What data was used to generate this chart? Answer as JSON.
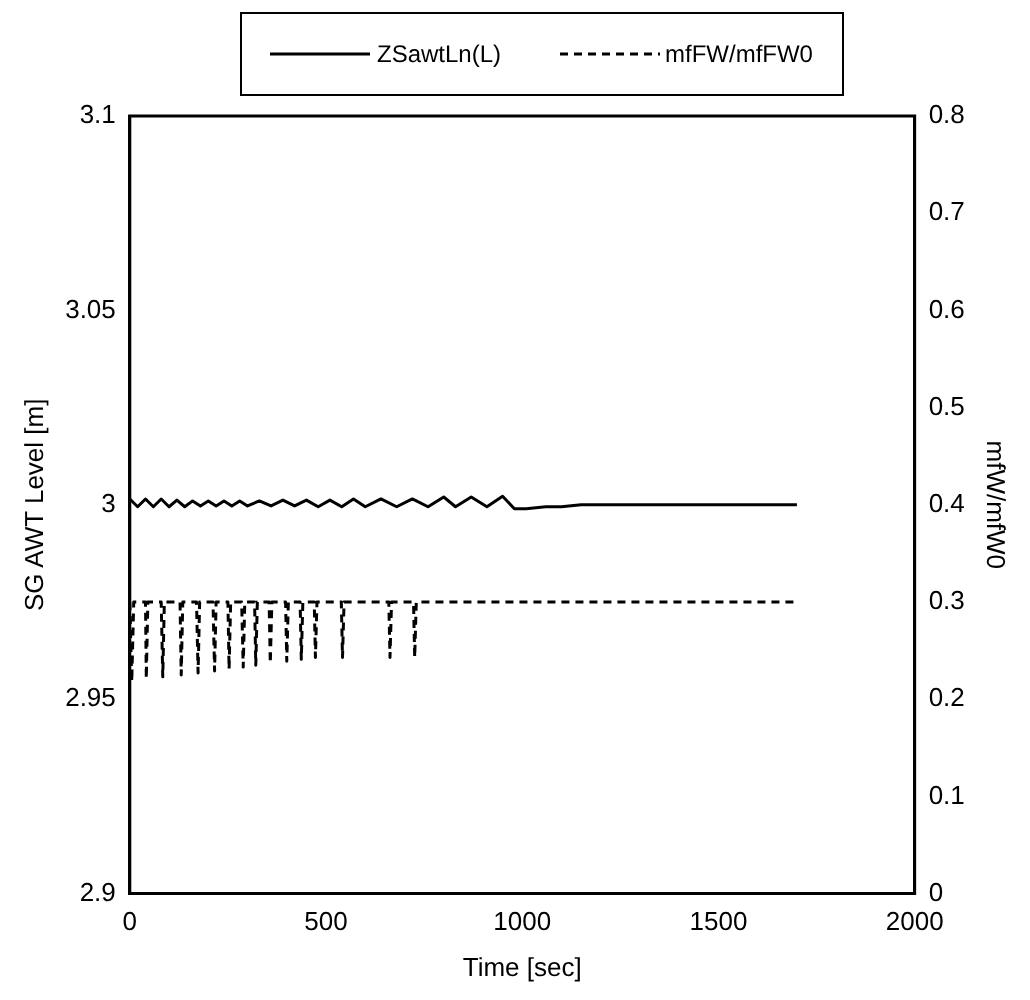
{
  "chart_data": {
    "type": "line",
    "xlabel": "Time [sec]",
    "ylabel": "SG AWT Level [m]",
    "y2label": "mfW/mfW0",
    "xlim": [
      0,
      2000
    ],
    "xticks": [
      0,
      500,
      1000,
      1500,
      2000
    ],
    "ylim": [
      2.9,
      3.1
    ],
    "yticks": [
      2.9,
      2.95,
      3,
      3.05,
      3.1
    ],
    "y2lim": [
      0,
      0.8
    ],
    "y2ticks": [
      0,
      0.1,
      0.2,
      0.3,
      0.4,
      0.5,
      0.6,
      0.7,
      0.8
    ],
    "legend": "top",
    "grid": false,
    "marker": "none",
    "series": [
      {
        "name": "ZSawtLn(L)",
        "color": "#000000",
        "line_style": "solid",
        "x": [
          0,
          20,
          40,
          60,
          80,
          100,
          120,
          140,
          160,
          180,
          200,
          220,
          240,
          260,
          280,
          300,
          330,
          360,
          390,
          420,
          450,
          480,
          510,
          540,
          570,
          600,
          640,
          680,
          720,
          760,
          800,
          830,
          870,
          910,
          950,
          980,
          1010,
          1060,
          1100,
          1150,
          1700
        ],
        "values": [
          3.0015,
          2.9995,
          3.0015,
          2.9995,
          3.0015,
          2.9995,
          3.0012,
          2.9995,
          3.001,
          2.9997,
          3.001,
          2.9997,
          3.001,
          2.9997,
          3.001,
          2.9997,
          3.001,
          2.9997,
          3.0012,
          2.9997,
          3.0012,
          2.9995,
          3.0012,
          2.9995,
          3.0015,
          2.9995,
          3.0015,
          2.9995,
          3.0015,
          2.9995,
          3.002,
          2.9995,
          3.002,
          2.9995,
          3.0022,
          2.999,
          2.999,
          2.9995,
          2.9995,
          3.0,
          3.0
        ]
      },
      {
        "name": "mfFW/mfFW0",
        "color": "#000000",
        "line_style": "dashed",
        "axis": "y2",
        "x": [
          0,
          5,
          10,
          40,
          42,
          46,
          80,
          84,
          88,
          128,
          131,
          135,
          170,
          174,
          178,
          212,
          216,
          220,
          250,
          253,
          257,
          285,
          289,
          293,
          318,
          321,
          325,
          355,
          358,
          362,
          397,
          400,
          404,
          434,
          437,
          441,
          470,
          473,
          477,
          539,
          542,
          546,
          660,
          663,
          667,
          723,
          726,
          730,
          1700
        ],
        "values": [
          0.3,
          0.218,
          0.3,
          0.3,
          0.221,
          0.3,
          0.3,
          0.223,
          0.3,
          0.3,
          0.225,
          0.3,
          0.3,
          0.227,
          0.3,
          0.3,
          0.229,
          0.3,
          0.3,
          0.231,
          0.3,
          0.3,
          0.233,
          0.3,
          0.3,
          0.235,
          0.3,
          0.3,
          0.237,
          0.3,
          0.3,
          0.239,
          0.3,
          0.3,
          0.241,
          0.3,
          0.3,
          0.243,
          0.3,
          0.3,
          0.243,
          0.3,
          0.3,
          0.243,
          0.3,
          0.3,
          0.243,
          0.3,
          0.3
        ]
      }
    ]
  }
}
